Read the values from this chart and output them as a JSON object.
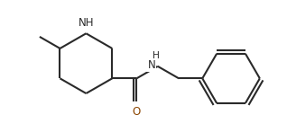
{
  "background_color": "#ffffff",
  "line_color": "#2a2a2a",
  "atom_color_N": "#2a2a2a",
  "atom_color_O": "#8B4500",
  "line_width": 1.5,
  "font_size": 8.5,
  "figsize": [
    3.18,
    1.47
  ],
  "dpi": 100,
  "xlim": [
    0,
    10
  ],
  "ylim": [
    0,
    4.62
  ]
}
